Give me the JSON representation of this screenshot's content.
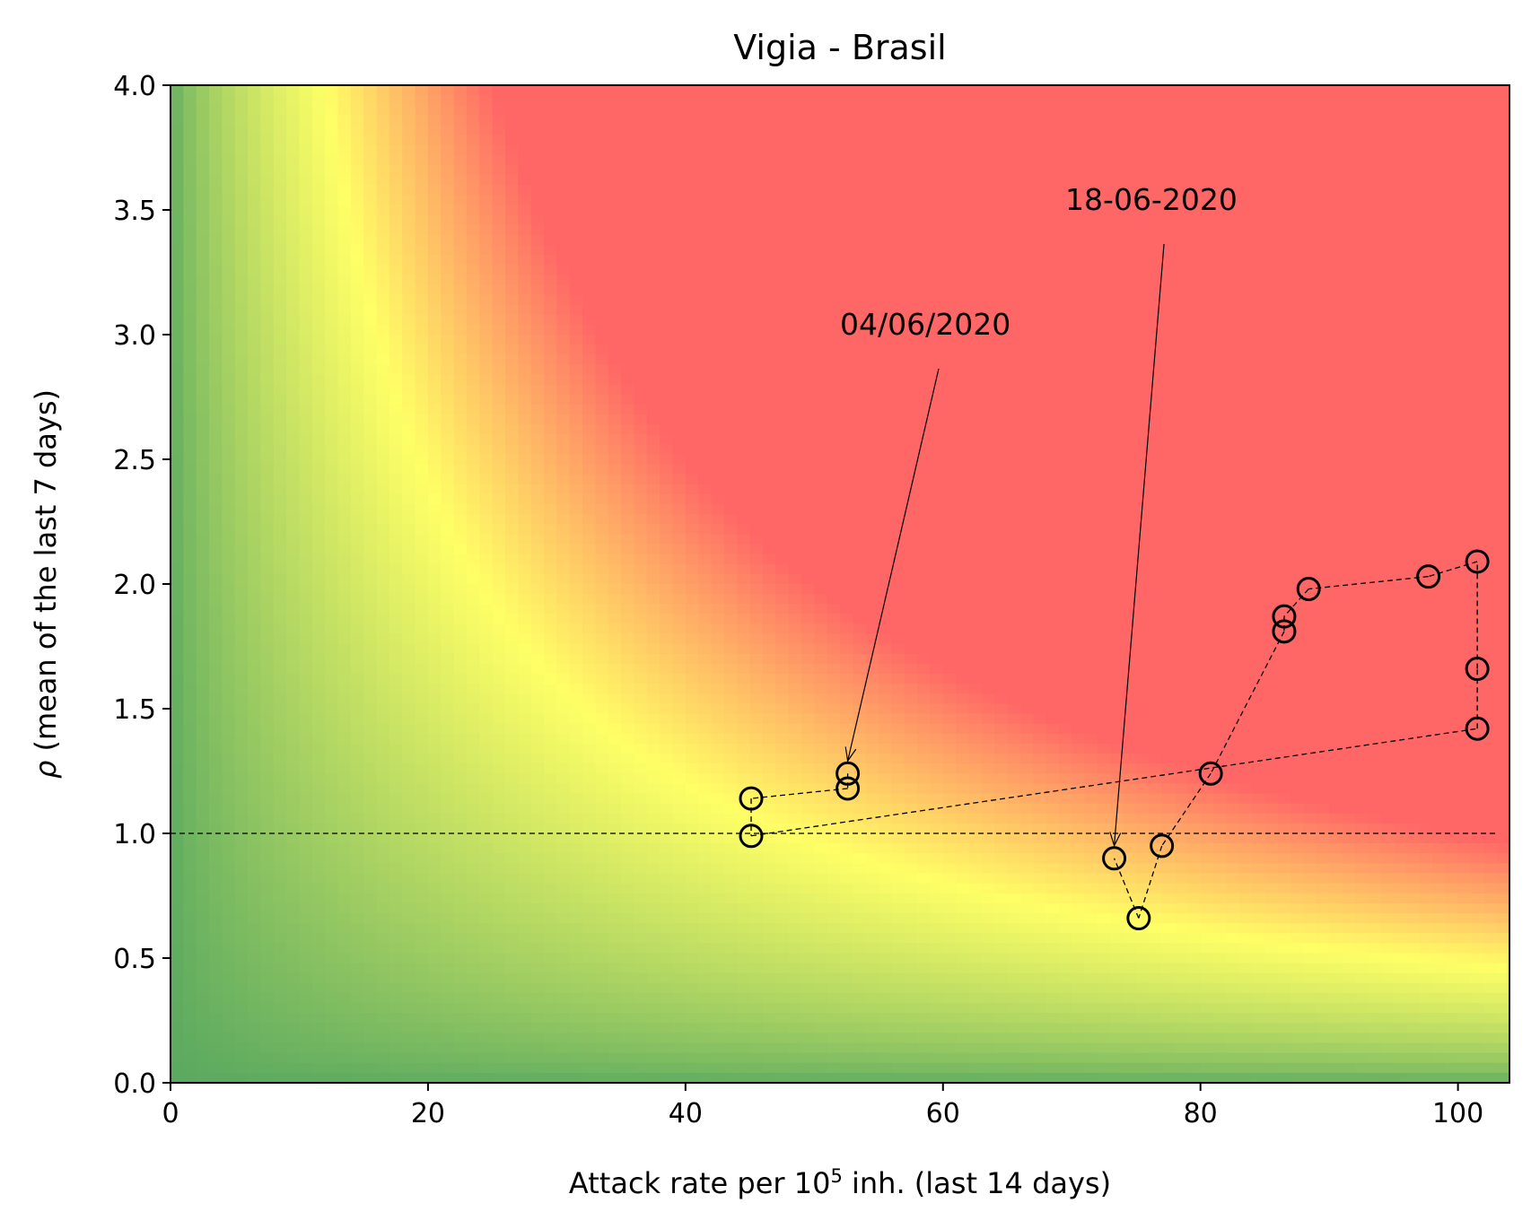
{
  "chart_data": {
    "type": "scatter",
    "title": "Vigia - Brasil",
    "xlabel_prefix": "Attack rate per 10",
    "xlabel_sup": "5",
    "xlabel_suffix": " inh. (last 14 days)",
    "ylabel_symbol": "ρ",
    "ylabel_rest": " (mean of the last 7 days)",
    "xlim": [
      0,
      104
    ],
    "ylim": [
      0,
      4
    ],
    "xticks": [
      0,
      20,
      40,
      60,
      80,
      100
    ],
    "xtick_labels": [
      "0",
      "20",
      "40",
      "60",
      "80",
      "100"
    ],
    "yticks": [
      0,
      0.5,
      1,
      1.5,
      2,
      2.5,
      3,
      3.5,
      4
    ],
    "ytick_labels": [
      "0.0",
      "0.5",
      "1.0",
      "1.5",
      "2.0",
      "2.5",
      "3.0",
      "3.5",
      "4.0"
    ],
    "reference_line_y": 1.0,
    "background": "risk heatmap: green (low) → yellow → red (high), risk ~ attack_rate × ρ",
    "colors": {
      "low": "#5aa960",
      "mid": "#ffff66",
      "high": "#ff6666",
      "marker": "#000000"
    },
    "series": [
      {
        "name": "trajectory",
        "points": [
          {
            "x": 52.6,
            "y": 1.24
          },
          {
            "x": 52.6,
            "y": 1.18
          },
          {
            "x": 45.1,
            "y": 1.14
          },
          {
            "x": 45.1,
            "y": 0.99
          },
          {
            "x": 101.5,
            "y": 1.42
          },
          {
            "x": 101.5,
            "y": 1.66
          },
          {
            "x": 101.5,
            "y": 2.09
          },
          {
            "x": 97.7,
            "y": 2.03
          },
          {
            "x": 88.4,
            "y": 1.98
          },
          {
            "x": 86.5,
            "y": 1.87
          },
          {
            "x": 86.5,
            "y": 1.81
          },
          {
            "x": 80.8,
            "y": 1.24
          },
          {
            "x": 77.0,
            "y": 0.95
          },
          {
            "x": 75.2,
            "y": 0.66
          },
          {
            "x": 73.3,
            "y": 0.9
          }
        ]
      }
    ],
    "annotations": [
      {
        "text": "04/06/2020",
        "point": {
          "x": 52.6,
          "y": 1.24
        },
        "text_pos": {
          "x": 52.0,
          "y": 3.0
        }
      },
      {
        "text": "18-06-2020",
        "point": {
          "x": 73.3,
          "y": 0.9
        },
        "text_pos": {
          "x": 69.5,
          "y": 3.5
        }
      }
    ]
  }
}
